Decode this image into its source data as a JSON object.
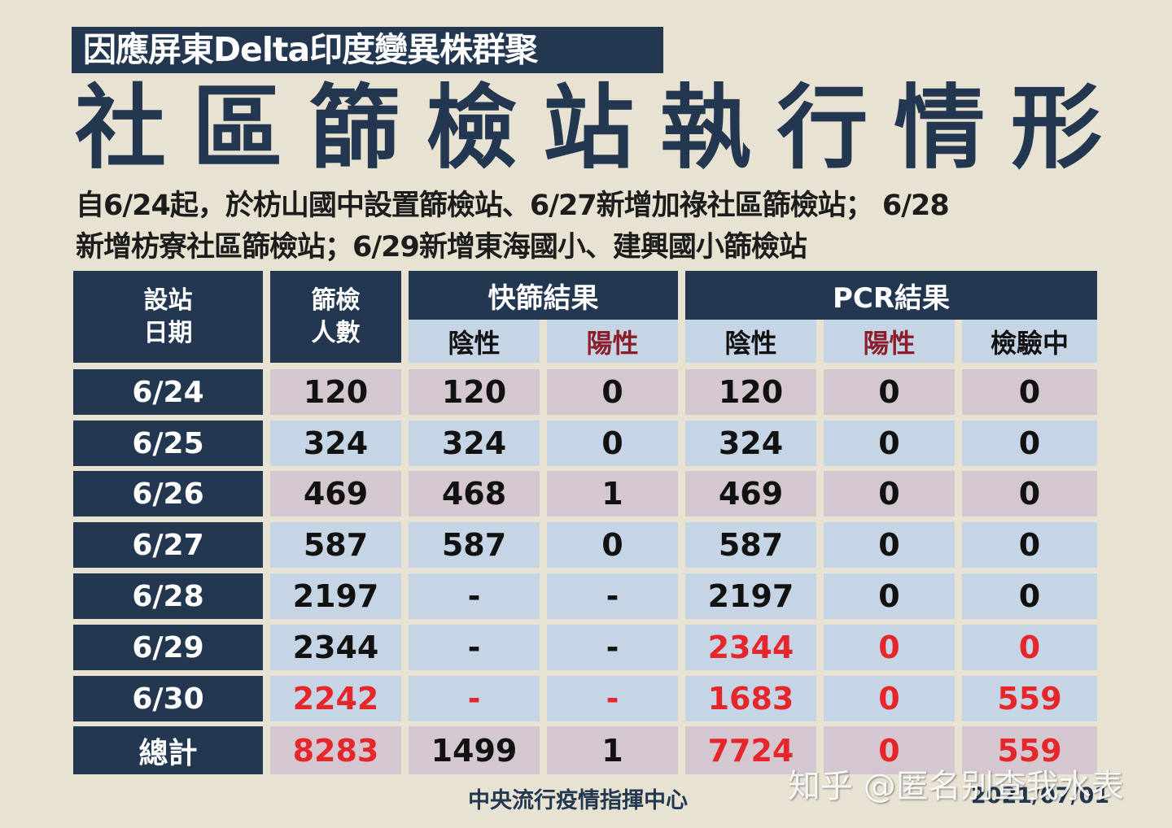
{
  "header": {
    "subtitle": "因應屏東Delta印度變異株群聚",
    "title_chars": [
      "社",
      "區",
      "篩",
      "檢",
      "站",
      "執",
      "行",
      "情",
      "形"
    ],
    "title": "社區篩檢站執行情形",
    "description_line1": "自6/24起，於枋山國中設置篩檢站、6/27新增加祿社區篩檢站； 6/28",
    "description_line2": "新增枋寮社區篩檢站；6/29新增東海國小、建興國小篩檢站"
  },
  "table": {
    "headers": {
      "date_line1": "設站",
      "date_line2": "日期",
      "count_line1": "篩檢",
      "count_line2": "人數",
      "rapid_group": "快篩結果",
      "pcr_group": "PCR結果",
      "rapid_negative": "陰性",
      "rapid_positive": "陽性",
      "pcr_negative": "陰性",
      "pcr_positive": "陽性",
      "pcr_pending": "檢驗中"
    },
    "rows": [
      {
        "date": "6/24",
        "screened": "120",
        "rapid_negative": "120",
        "rapid_positive": "0",
        "pcr_negative": "120",
        "pcr_positive": "0",
        "pcr_pending": "0"
      },
      {
        "date": "6/25",
        "screened": "324",
        "rapid_negative": "324",
        "rapid_positive": "0",
        "pcr_negative": "324",
        "pcr_positive": "0",
        "pcr_pending": "0"
      },
      {
        "date": "6/26",
        "screened": "469",
        "rapid_negative": "468",
        "rapid_positive": "1",
        "pcr_negative": "469",
        "pcr_positive": "0",
        "pcr_pending": "0"
      },
      {
        "date": "6/27",
        "screened": "587",
        "rapid_negative": "587",
        "rapid_positive": "0",
        "pcr_negative": "587",
        "pcr_positive": "0",
        "pcr_pending": "0"
      },
      {
        "date": "6/28",
        "screened": "2197",
        "rapid_negative": "-",
        "rapid_positive": "-",
        "pcr_negative": "2197",
        "pcr_positive": "0",
        "pcr_pending": "0"
      },
      {
        "date": "6/29",
        "screened": "2344",
        "rapid_negative": "-",
        "rapid_positive": "-",
        "pcr_negative": "2344",
        "pcr_positive": "0",
        "pcr_pending": "0"
      },
      {
        "date": "6/30",
        "screened": "2242",
        "rapid_negative": "-",
        "rapid_positive": "-",
        "pcr_negative": "1683",
        "pcr_positive": "0",
        "pcr_pending": "559"
      },
      {
        "date": "總計",
        "screened": "8283",
        "rapid_negative": "1499",
        "rapid_positive": "1",
        "pcr_negative": "7724",
        "pcr_positive": "0",
        "pcr_pending": "559"
      }
    ]
  },
  "footer": {
    "organization": "中央流行疫情指揮中心",
    "date": "2021/07/01",
    "watermark": "知乎 @匿名别查我水表"
  },
  "colors": {
    "navy": "#233850",
    "background": "#E8E2D3",
    "row_pink": "#D5C7D0",
    "row_blue": "#C6D5E5",
    "highlight_red": "#E5262B",
    "positive_label": "#8B1E2A"
  }
}
